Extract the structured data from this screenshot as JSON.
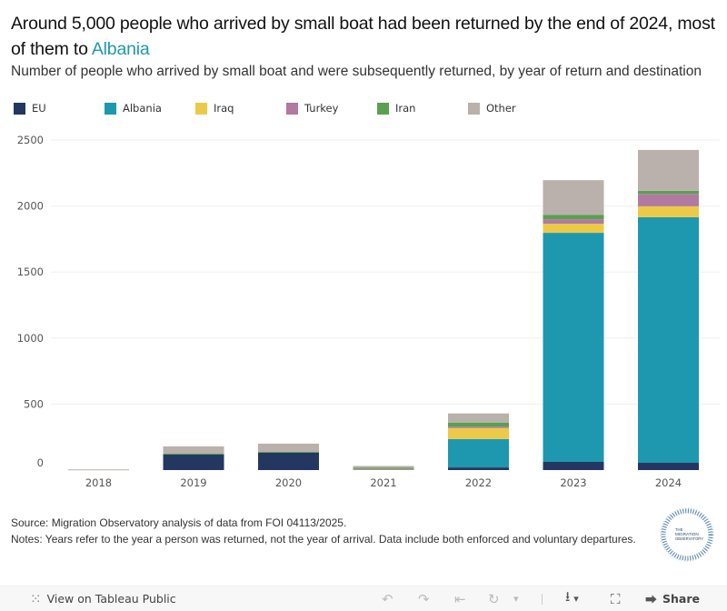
{
  "header": {
    "title_prefix": "Around 5,000 people who arrived by small boat had been returned by the end of 2024, most of them to ",
    "title_accent": "Albania",
    "subtitle": "Number of people who arrived by small boat and were subsequently returned, by year of return and destination"
  },
  "legend": [
    {
      "label": "EU",
      "color": "#233761"
    },
    {
      "label": "Albania",
      "color": "#1E98AE"
    },
    {
      "label": "Iraq",
      "color": "#EDC948"
    },
    {
      "label": "Turkey",
      "color": "#B07AA1"
    },
    {
      "label": "Iran",
      "color": "#59A14F"
    },
    {
      "label": "Other",
      "color": "#BAB0AC"
    }
  ],
  "chart_data": {
    "type": "bar",
    "stacked": true,
    "title": "Around 5,000 people who arrived by small boat had been returned by the end of 2024, most of them to Albania",
    "subtitle": "Number of people who arrived by small boat and were subsequently returned, by year of return and destination",
    "xlabel": "",
    "ylabel": "",
    "categories": [
      "2018",
      "2019",
      "2020",
      "2021",
      "2022",
      "2023",
      "2024"
    ],
    "ylim": [
      0,
      2500
    ],
    "yticks": [
      0,
      500,
      1000,
      1500,
      2000,
      2500
    ],
    "grid": true,
    "legend_position": "top-left",
    "series": [
      {
        "name": "EU",
        "color": "#233761",
        "values": [
          0,
          117,
          131,
          0,
          20,
          62,
          55
        ]
      },
      {
        "name": "Albania",
        "color": "#1E98AE",
        "values": [
          0,
          0,
          0,
          8,
          215,
          1735,
          1860
        ]
      },
      {
        "name": "Iraq",
        "color": "#EDC948",
        "values": [
          0,
          0,
          0,
          2,
          83,
          69,
          83
        ]
      },
      {
        "name": "Turkey",
        "color": "#B07AA1",
        "values": [
          0,
          0,
          0,
          3,
          12,
          34,
          94
        ]
      },
      {
        "name": "Iran",
        "color": "#59A14F",
        "values": [
          0,
          7,
          7,
          6,
          30,
          34,
          23
        ]
      },
      {
        "name": "Other",
        "color": "#BAB0AC",
        "values": [
          5,
          55,
          62,
          12,
          69,
          262,
          310
        ]
      }
    ]
  },
  "footer": {
    "source": "Source: Migration Observatory analysis of data from FOI 04113/2025.",
    "notes": "Notes: Years refer to the year a person was returned, not the year of arrival. Data include both enforced and voluntary departures.",
    "logo_text": "THE MIGRATION OBSERVATORY"
  },
  "toolbar": {
    "view_on_tableau": "View on Tableau Public",
    "share": "Share",
    "icons": {
      "tableau": "⁙",
      "undo": "↶",
      "redo": "↷",
      "revert": "⇤",
      "refresh": "↻",
      "dropdown": "▾",
      "download": "⭳",
      "fullscreen": "⛶",
      "share": "⮕"
    }
  }
}
